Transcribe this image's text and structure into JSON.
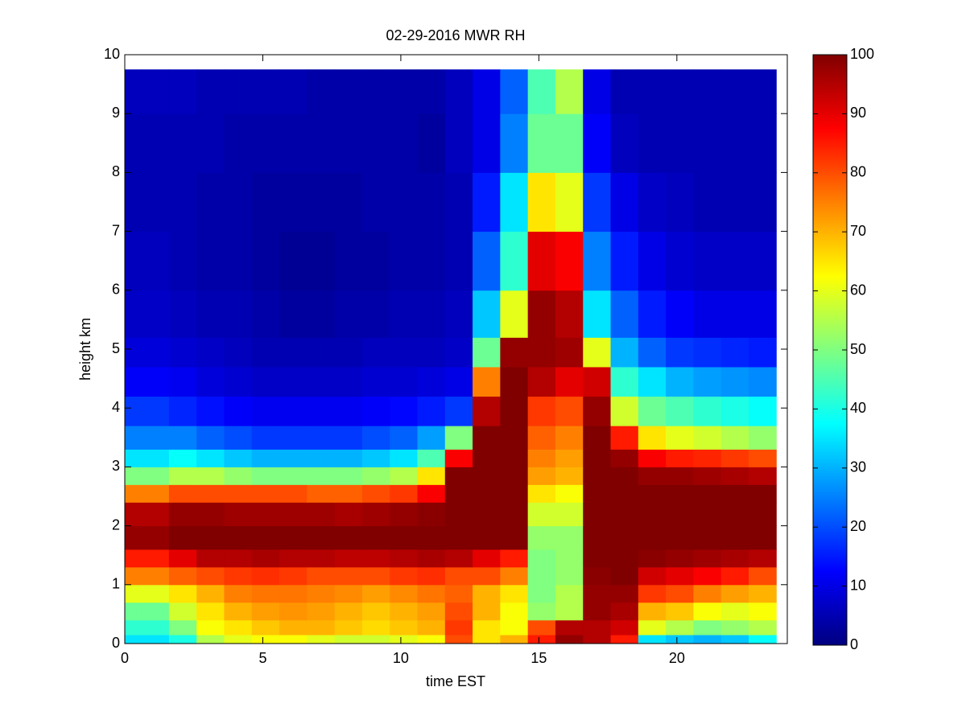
{
  "chart_data": {
    "type": "heatmap",
    "title": "02-29-2016 MWR RH",
    "xlabel": "time EST",
    "ylabel": "height km",
    "xlim": [
      0,
      24
    ],
    "ylim": [
      0,
      10
    ],
    "xticks": [
      0,
      5,
      10,
      15,
      20
    ],
    "yticks": [
      0,
      1,
      2,
      3,
      4,
      5,
      6,
      7,
      8,
      9,
      10
    ],
    "clim": [
      0,
      100
    ],
    "cticks": [
      0,
      10,
      20,
      30,
      40,
      50,
      60,
      70,
      80,
      90,
      100
    ],
    "colormap": "jet",
    "x_edges": [
      0,
      0.6,
      1.6,
      2.6,
      3.6,
      4.6,
      5.6,
      6.6,
      7.6,
      8.6,
      9.6,
      10.6,
      11.6,
      12.6,
      13.6,
      14.6,
      15.6,
      16.6,
      17.6,
      18.6,
      19.6,
      20.6,
      21.6,
      22.6,
      23.6
    ],
    "y_edges": [
      0,
      0.15,
      0.4,
      0.7,
      1.0,
      1.3,
      1.6,
      2.0,
      2.4,
      2.7,
      3.0,
      3.3,
      3.7,
      4.2,
      4.7,
      5.2,
      6.0,
      7.0,
      8.0,
      9.0,
      9.75
    ],
    "values": [
      [
        35,
        35,
        40,
        55,
        60,
        62,
        62,
        60,
        58,
        58,
        60,
        62,
        80,
        65,
        70,
        85,
        98,
        95,
        85,
        35,
        32,
        30,
        32,
        38
      ],
      [
        42,
        42,
        50,
        62,
        65,
        68,
        70,
        70,
        68,
        66,
        68,
        70,
        82,
        65,
        62,
        80,
        95,
        95,
        92,
        60,
        55,
        50,
        52,
        55
      ],
      [
        48,
        48,
        58,
        65,
        70,
        72,
        73,
        72,
        70,
        68,
        70,
        72,
        80,
        70,
        62,
        52,
        55,
        98,
        96,
        70,
        68,
        62,
        60,
        62
      ],
      [
        60,
        60,
        65,
        70,
        75,
        76,
        76,
        75,
        74,
        72,
        74,
        76,
        78,
        70,
        65,
        50,
        55,
        98,
        98,
        82,
        80,
        75,
        72,
        70
      ],
      [
        75,
        75,
        78,
        80,
        82,
        83,
        82,
        80,
        80,
        80,
        82,
        83,
        80,
        80,
        75,
        50,
        52,
        99,
        100,
        92,
        90,
        88,
        85,
        80
      ],
      [
        85,
        85,
        90,
        95,
        95,
        96,
        95,
        95,
        94,
        94,
        95,
        96,
        95,
        90,
        85,
        50,
        52,
        100,
        100,
        99,
        98,
        97,
        96,
        95
      ],
      [
        98,
        98,
        100,
        100,
        100,
        100,
        100,
        100,
        100,
        100,
        100,
        100,
        100,
        100,
        100,
        52,
        52,
        100,
        100,
        100,
        100,
        100,
        100,
        100
      ],
      [
        95,
        95,
        98,
        98,
        97,
        97,
        97,
        97,
        96,
        97,
        98,
        99,
        100,
        100,
        100,
        58,
        58,
        100,
        100,
        100,
        100,
        100,
        100,
        100
      ],
      [
        75,
        75,
        80,
        80,
        80,
        80,
        80,
        78,
        78,
        80,
        82,
        88,
        100,
        100,
        100,
        65,
        62,
        100,
        100,
        100,
        100,
        100,
        100,
        100
      ],
      [
        50,
        50,
        55,
        55,
        52,
        50,
        50,
        50,
        50,
        52,
        55,
        65,
        100,
        100,
        100,
        72,
        70,
        100,
        100,
        98,
        98,
        97,
        96,
        95
      ],
      [
        35,
        35,
        38,
        35,
        32,
        30,
        30,
        30,
        30,
        32,
        35,
        45,
        88,
        100,
        100,
        75,
        72,
        100,
        98,
        88,
        85,
        84,
        82,
        80
      ],
      [
        25,
        25,
        25,
        22,
        20,
        18,
        18,
        18,
        18,
        20,
        22,
        28,
        50,
        100,
        100,
        78,
        75,
        100,
        85,
        65,
        60,
        58,
        55,
        52
      ],
      [
        18,
        18,
        16,
        14,
        12,
        11,
        11,
        11,
        11,
        12,
        13,
        15,
        18,
        95,
        100,
        82,
        80,
        98,
        58,
        48,
        45,
        42,
        40,
        38
      ],
      [
        12,
        12,
        11,
        9,
        8,
        7,
        7,
        7,
        7,
        8,
        8,
        9,
        10,
        75,
        100,
        95,
        90,
        92,
        42,
        35,
        30,
        28,
        27,
        26
      ],
      [
        9,
        9,
        8,
        7,
        6,
        5,
        5,
        5,
        5,
        6,
        6,
        6,
        7,
        48,
        98,
        98,
        97,
        60,
        30,
        22,
        18,
        17,
        16,
        15
      ],
      [
        7,
        7,
        6,
        5,
        5,
        4,
        3,
        3,
        4,
        4,
        5,
        5,
        6,
        32,
        60,
        98,
        95,
        35,
        22,
        15,
        12,
        10,
        10,
        10
      ],
      [
        6,
        6,
        5,
        4,
        4,
        3,
        2,
        2,
        3,
        3,
        4,
        4,
        5,
        22,
        42,
        90,
        88,
        25,
        15,
        10,
        8,
        7,
        7,
        7
      ],
      [
        5,
        5,
        5,
        4,
        4,
        3,
        3,
        3,
        3,
        4,
        4,
        4,
        5,
        15,
        35,
        65,
        60,
        18,
        10,
        7,
        6,
        5,
        5,
        5
      ],
      [
        5,
        5,
        5,
        5,
        4,
        4,
        4,
        4,
        4,
        4,
        4,
        3,
        6,
        10,
        25,
        48,
        48,
        12,
        6,
        5,
        5,
        5,
        5,
        5
      ],
      [
        6,
        6,
        6,
        5,
        5,
        5,
        5,
        4,
        4,
        4,
        4,
        4,
        6,
        10,
        22,
        45,
        55,
        10,
        5,
        5,
        5,
        5,
        5,
        5
      ]
    ]
  }
}
